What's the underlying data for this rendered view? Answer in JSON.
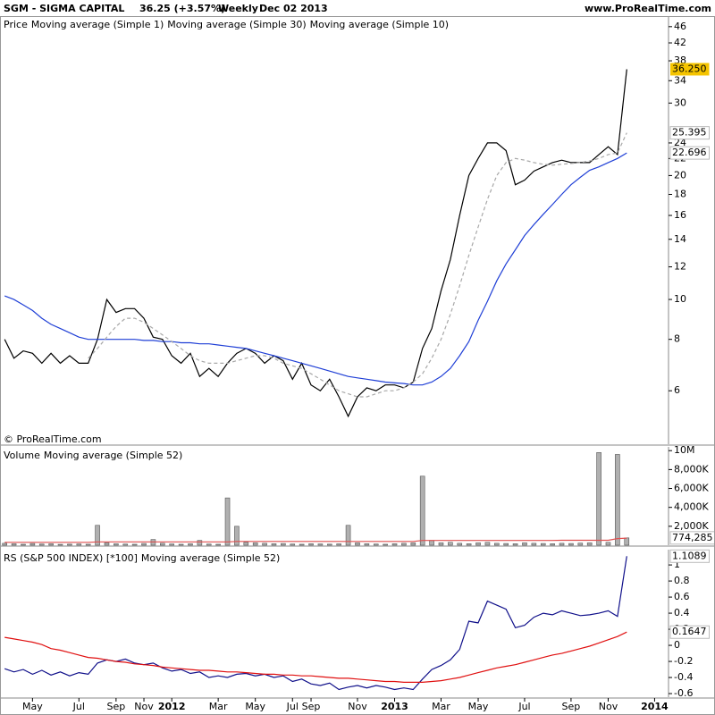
{
  "header": {
    "symbol": "SGM - SIGMA CAPITAL",
    "change": "36.25 (+3.57%)",
    "period": "Weekly",
    "date": "Dec 02 2013",
    "site": "www.ProRealTime.com",
    "copyright": "© ProRealTime.com"
  },
  "chart_data": [
    {
      "type": "line",
      "label": "Price",
      "log": true,
      "ylim": [
        4.45,
        48.8
      ],
      "yticks": [
        46,
        42,
        38,
        34,
        30,
        24,
        22,
        20,
        18,
        16,
        14,
        12,
        10,
        8,
        6
      ],
      "series": [
        {
          "name": "Moving average (Simple 1)",
          "color": "#000000",
          "legend_color": "#1f3fbf",
          "last_label": "36.250",
          "label_background": "#f5c400",
          "values": [
            8.0,
            7.2,
            7.5,
            7.4,
            7.0,
            7.4,
            7.0,
            7.3,
            7.0,
            7.0,
            8.0,
            10.0,
            9.3,
            9.5,
            9.5,
            9.0,
            8.1,
            8.0,
            7.3,
            7.0,
            7.4,
            6.5,
            6.8,
            6.5,
            7.0,
            7.4,
            7.6,
            7.4,
            7.0,
            7.3,
            7.1,
            6.4,
            7.0,
            6.2,
            6.0,
            6.4,
            5.8,
            5.2,
            5.8,
            6.1,
            6.0,
            6.2,
            6.2,
            6.1,
            6.3,
            7.6,
            8.5,
            10.5,
            12.5,
            16,
            20,
            22,
            24,
            24,
            23,
            19,
            19.5,
            20.5,
            21,
            21.5,
            21.8,
            21.5,
            21.5,
            21.5,
            22.5,
            23.5,
            22.5,
            36.25,
            null,
            null,
            null,
            null
          ]
        },
        {
          "name": "Moving average (Simple 30)",
          "color": "#1f3fd6",
          "last_label": "22.696",
          "values": [
            10.2,
            10.0,
            9.7,
            9.4,
            9.0,
            8.7,
            8.5,
            8.3,
            8.1,
            8.0,
            8.0,
            8.0,
            8.0,
            8.0,
            8.0,
            7.95,
            7.95,
            7.9,
            7.9,
            7.85,
            7.85,
            7.8,
            7.8,
            7.75,
            7.7,
            7.65,
            7.6,
            7.5,
            7.4,
            7.3,
            7.2,
            7.1,
            7.0,
            6.9,
            6.8,
            6.7,
            6.6,
            6.5,
            6.45,
            6.4,
            6.35,
            6.3,
            6.27,
            6.25,
            6.2,
            6.2,
            6.3,
            6.5,
            6.8,
            7.3,
            7.9,
            8.9,
            9.9,
            11.1,
            12.2,
            13.2,
            14.3,
            15.2,
            16.1,
            17.0,
            18.0,
            19.0,
            19.8,
            20.6,
            21.0,
            21.5,
            22.0,
            22.696,
            null,
            null,
            null,
            null
          ]
        },
        {
          "name": "Moving average (Simple 10)",
          "color": "#a8a8a8",
          "dash": true,
          "last_label": "25.395",
          "values": [
            null,
            null,
            null,
            null,
            null,
            null,
            null,
            null,
            null,
            7.2,
            7.6,
            8.1,
            8.6,
            9.0,
            9.0,
            8.8,
            8.5,
            8.2,
            7.9,
            7.6,
            7.3,
            7.1,
            7.0,
            7.0,
            7.0,
            7.1,
            7.2,
            7.3,
            7.3,
            7.2,
            7.0,
            6.9,
            6.8,
            6.6,
            6.4,
            6.2,
            6.0,
            5.9,
            5.8,
            5.8,
            5.9,
            6.0,
            6.0,
            6.1,
            6.3,
            6.6,
            7.2,
            8.0,
            9.2,
            10.8,
            12.8,
            15.0,
            17.5,
            20.0,
            21.5,
            22.0,
            21.8,
            21.5,
            21.3,
            21.2,
            21.3,
            21.4,
            21.5,
            21.7,
            22.0,
            22.5,
            22.7,
            25.395,
            null,
            null,
            null,
            null
          ]
        }
      ]
    },
    {
      "type": "bar",
      "ylim": [
        0,
        10400000
      ],
      "yticks": [
        {
          "value": 10000000,
          "label": "10M"
        },
        {
          "value": 8000000,
          "label": "8,000K"
        },
        {
          "value": 6000000,
          "label": "6,000K"
        },
        {
          "value": 4000000,
          "label": "4,000K"
        },
        {
          "value": 2000000,
          "label": "2,000K"
        }
      ],
      "series": [
        {
          "name": "Volume",
          "type": "bar",
          "color": "#b0b0b0",
          "last_label": "774,285",
          "values": [
            200000,
            150000,
            100000,
            180000,
            120000,
            150000,
            90000,
            110000,
            130000,
            100000,
            2100000,
            250000,
            150000,
            120000,
            100000,
            180000,
            600000,
            200000,
            130000,
            100000,
            150000,
            500000,
            120000,
            100000,
            5000000,
            2000000,
            300000,
            250000,
            200000,
            150000,
            180000,
            120000,
            100000,
            150000,
            130000,
            110000,
            140000,
            2100000,
            250000,
            150000,
            120000,
            100000,
            150000,
            200000,
            250000,
            7300000,
            500000,
            250000,
            300000,
            200000,
            150000,
            250000,
            300000,
            200000,
            180000,
            150000,
            250000,
            200000,
            180000,
            150000,
            200000,
            180000,
            220000,
            250000,
            9800000,
            300000,
            9600000,
            774285,
            null,
            null,
            null,
            null
          ]
        },
        {
          "name": "Moving average (Simple 52)",
          "type": "line",
          "color": "#e05050",
          "values": [
            300000,
            300000,
            300000,
            300000,
            300000,
            300000,
            300000,
            300000,
            300000,
            300000,
            350000,
            350000,
            350000,
            350000,
            350000,
            350000,
            350000,
            350000,
            350000,
            350000,
            350000,
            350000,
            350000,
            350000,
            350000,
            400000,
            400000,
            400000,
            400000,
            400000,
            400000,
            400000,
            400000,
            400000,
            400000,
            400000,
            400000,
            400000,
            400000,
            400000,
            400000,
            400000,
            400000,
            400000,
            400000,
            500000,
            500000,
            500000,
            500000,
            500000,
            500000,
            500000,
            500000,
            500000,
            500000,
            500000,
            500000,
            500000,
            500000,
            500000,
            520000,
            520000,
            520000,
            520000,
            520000,
            520000,
            700000,
            750000,
            null,
            null,
            null,
            null
          ]
        }
      ]
    },
    {
      "type": "line",
      "ylim": [
        -0.644,
        1.19
      ],
      "yticks": [
        1,
        0.8,
        0.6,
        0.4,
        0.2,
        0,
        -0.2,
        -0.4,
        -0.6
      ],
      "categories": [
        null,
        null,
        null,
        "May",
        null,
        null,
        null,
        null,
        "Jul",
        null,
        null,
        null,
        "Sep",
        null,
        null,
        "Nov",
        null,
        null,
        "2012",
        null,
        null,
        null,
        null,
        "Mar",
        null,
        null,
        null,
        "May",
        null,
        null,
        null,
        "Jul",
        null,
        "Sep",
        null,
        null,
        null,
        null,
        "Nov",
        null,
        null,
        null,
        "2013",
        null,
        null,
        null,
        null,
        "Mar",
        null,
        null,
        null,
        "May",
        null,
        null,
        null,
        null,
        "Jul",
        null,
        null,
        null,
        null,
        "Sep",
        null,
        null,
        null,
        "Nov",
        null,
        null,
        null,
        null,
        "2014",
        null
      ],
      "series": [
        {
          "name": "RS (S&P 500 INDEX) [*100]",
          "color": "#10108a",
          "show_last": true,
          "values": [
            -0.29,
            -0.33,
            -0.3,
            -0.36,
            -0.31,
            -0.37,
            -0.33,
            -0.38,
            -0.34,
            -0.36,
            -0.22,
            -0.18,
            -0.2,
            -0.17,
            -0.22,
            -0.24,
            -0.22,
            -0.28,
            -0.32,
            -0.3,
            -0.35,
            -0.33,
            -0.4,
            -0.38,
            -0.4,
            -0.36,
            -0.35,
            -0.38,
            -0.36,
            -0.4,
            -0.38,
            -0.45,
            -0.42,
            -0.48,
            -0.5,
            -0.47,
            -0.55,
            -0.52,
            -0.5,
            -0.53,
            -0.5,
            -0.52,
            -0.55,
            -0.53,
            -0.55,
            -0.42,
            -0.3,
            -0.25,
            -0.18,
            -0.05,
            0.3,
            0.28,
            0.55,
            0.5,
            0.45,
            0.22,
            0.25,
            0.35,
            0.4,
            0.38,
            0.43,
            0.4,
            0.37,
            0.38,
            0.4,
            0.43,
            0.36,
            1.1089,
            null,
            null,
            null,
            null
          ]
        },
        {
          "name": "Moving average (Simple 52)",
          "color": "#e01010",
          "show_last": true,
          "values": [
            0.1,
            0.08,
            0.06,
            0.04,
            0.01,
            -0.04,
            -0.06,
            -0.09,
            -0.12,
            -0.15,
            -0.16,
            -0.18,
            -0.2,
            -0.21,
            -0.23,
            -0.24,
            -0.25,
            -0.27,
            -0.28,
            -0.29,
            -0.3,
            -0.31,
            -0.31,
            -0.32,
            -0.33,
            -0.33,
            -0.34,
            -0.35,
            -0.36,
            -0.36,
            -0.37,
            -0.37,
            -0.38,
            -0.38,
            -0.39,
            -0.4,
            -0.41,
            -0.41,
            -0.42,
            -0.43,
            -0.44,
            -0.45,
            -0.45,
            -0.46,
            -0.46,
            -0.46,
            -0.45,
            -0.44,
            -0.42,
            -0.4,
            -0.37,
            -0.34,
            -0.31,
            -0.28,
            -0.26,
            -0.24,
            -0.21,
            -0.18,
            -0.15,
            -0.12,
            -0.1,
            -0.07,
            -0.04,
            -0.01,
            0.03,
            0.07,
            0.11,
            0.1647,
            null,
            null,
            null,
            null
          ]
        }
      ]
    }
  ]
}
